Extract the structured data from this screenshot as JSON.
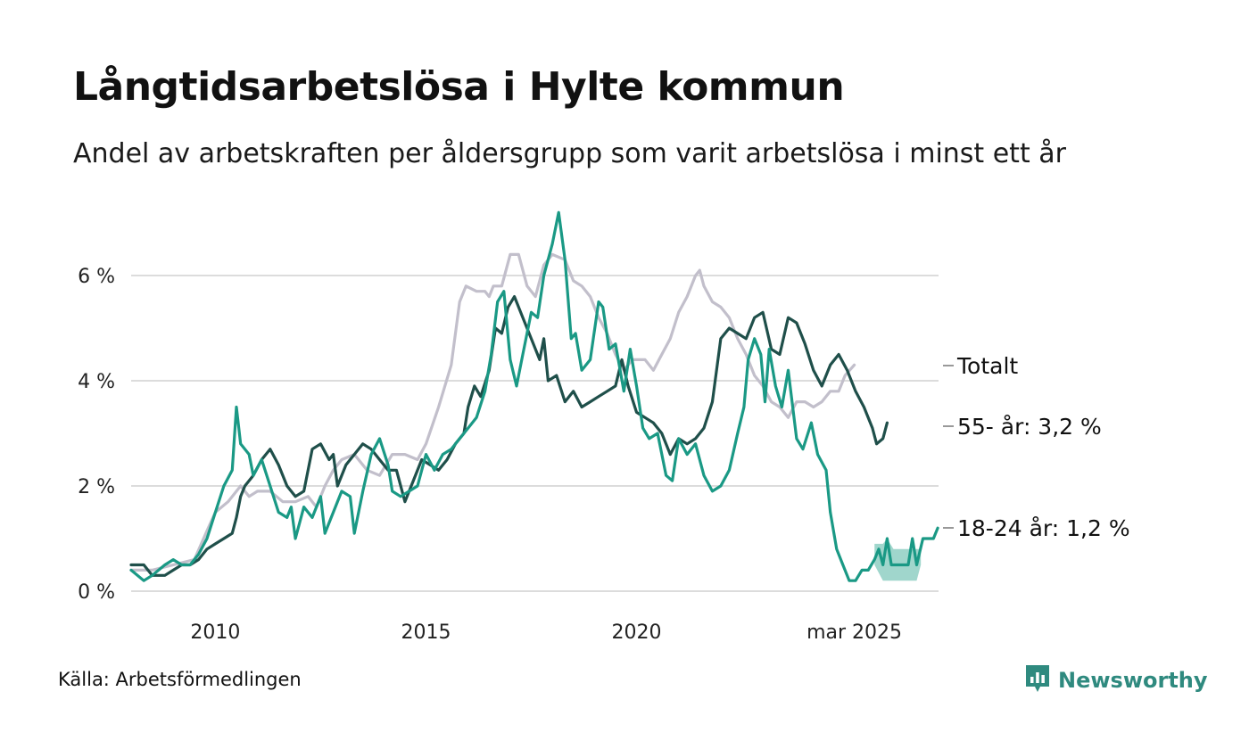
{
  "header": {
    "title": "Långtidsarbetslösa i Hylte kommun",
    "subtitle": "Andel av arbetskraften per åldersgrupp som varit arbetslösa i minst ett år"
  },
  "footer": {
    "source": "Källa: Arbetsförmedlingen",
    "brand": "Newsworthy"
  },
  "colors": {
    "total": "#c2bfcb",
    "age55": "#1f4f4a",
    "age1824": "#1a9985",
    "band": "#8fcfc3",
    "grid": "#dcdcdc",
    "brand": "#2f8a7f"
  },
  "icons": {
    "logo": "bar-chart-speech-bubble-icon"
  },
  "chart_data": {
    "type": "line",
    "x_ticks": [
      "2010",
      "2015",
      "2020",
      "mar 2025"
    ],
    "y_ticks": [
      "0 %",
      "2 %",
      "4 %",
      "6 %"
    ],
    "ylim": [
      0,
      7.3
    ],
    "grid": true,
    "series": [
      {
        "name": "Totalt",
        "label": "Totalt",
        "points": [
          [
            2008.0,
            0.4
          ],
          [
            2008.5,
            0.4
          ],
          [
            2009.0,
            0.5
          ],
          [
            2009.5,
            0.6
          ],
          [
            2009.83,
            1.2
          ],
          [
            2010.0,
            1.5
          ],
          [
            2010.3,
            1.7
          ],
          [
            2010.6,
            2.0
          ],
          [
            2010.8,
            1.8
          ],
          [
            2011.0,
            1.9
          ],
          [
            2011.3,
            1.9
          ],
          [
            2011.6,
            1.7
          ],
          [
            2011.9,
            1.7
          ],
          [
            2012.2,
            1.8
          ],
          [
            2012.4,
            1.6
          ],
          [
            2012.6,
            2.0
          ],
          [
            2012.8,
            2.3
          ],
          [
            2013.0,
            2.5
          ],
          [
            2013.3,
            2.6
          ],
          [
            2013.6,
            2.3
          ],
          [
            2013.9,
            2.2
          ],
          [
            2014.2,
            2.6
          ],
          [
            2014.5,
            2.6
          ],
          [
            2014.8,
            2.5
          ],
          [
            2015.0,
            2.8
          ],
          [
            2015.3,
            3.5
          ],
          [
            2015.6,
            4.3
          ],
          [
            2015.8,
            5.5
          ],
          [
            2015.95,
            5.8
          ],
          [
            2016.2,
            5.7
          ],
          [
            2016.4,
            5.7
          ],
          [
            2016.5,
            5.6
          ],
          [
            2016.6,
            5.8
          ],
          [
            2016.8,
            5.8
          ],
          [
            2017.0,
            6.4
          ],
          [
            2017.2,
            6.4
          ],
          [
            2017.4,
            5.8
          ],
          [
            2017.6,
            5.6
          ],
          [
            2017.8,
            6.2
          ],
          [
            2018.0,
            6.4
          ],
          [
            2018.3,
            6.3
          ],
          [
            2018.5,
            5.9
          ],
          [
            2018.7,
            5.8
          ],
          [
            2018.9,
            5.6
          ],
          [
            2019.1,
            5.2
          ],
          [
            2019.3,
            4.9
          ],
          [
            2019.5,
            4.5
          ],
          [
            2019.7,
            4.2
          ],
          [
            2019.9,
            4.4
          ],
          [
            2020.2,
            4.4
          ],
          [
            2020.4,
            4.2
          ],
          [
            2020.6,
            4.5
          ],
          [
            2020.8,
            4.8
          ],
          [
            2021.0,
            5.3
          ],
          [
            2021.2,
            5.6
          ],
          [
            2021.4,
            6.0
          ],
          [
            2021.5,
            6.1
          ],
          [
            2021.6,
            5.8
          ],
          [
            2021.8,
            5.5
          ],
          [
            2022.0,
            5.4
          ],
          [
            2022.2,
            5.2
          ],
          [
            2022.4,
            4.8
          ],
          [
            2022.6,
            4.5
          ],
          [
            2022.8,
            4.1
          ],
          [
            2023.0,
            3.9
          ],
          [
            2023.2,
            3.6
          ],
          [
            2023.4,
            3.5
          ],
          [
            2023.6,
            3.3
          ],
          [
            2023.8,
            3.6
          ],
          [
            2024.0,
            3.6
          ],
          [
            2024.2,
            3.5
          ],
          [
            2024.4,
            3.6
          ],
          [
            2024.6,
            3.8
          ],
          [
            2024.8,
            3.8
          ],
          [
            2024.95,
            4.1
          ],
          [
            2025.17,
            4.3
          ]
        ]
      },
      {
        "name": "55- år",
        "label": "55- år: 3,2 %",
        "points": [
          [
            2008.0,
            0.5
          ],
          [
            2008.3,
            0.5
          ],
          [
            2008.5,
            0.3
          ],
          [
            2008.8,
            0.3
          ],
          [
            2009.0,
            0.4
          ],
          [
            2009.2,
            0.5
          ],
          [
            2009.4,
            0.5
          ],
          [
            2009.6,
            0.6
          ],
          [
            2009.8,
            0.8
          ],
          [
            2010.0,
            0.9
          ],
          [
            2010.2,
            1.0
          ],
          [
            2010.4,
            1.1
          ],
          [
            2010.5,
            1.4
          ],
          [
            2010.6,
            1.8
          ],
          [
            2010.7,
            2.0
          ],
          [
            2010.9,
            2.2
          ],
          [
            2011.1,
            2.5
          ],
          [
            2011.3,
            2.7
          ],
          [
            2011.5,
            2.4
          ],
          [
            2011.7,
            2.0
          ],
          [
            2011.9,
            1.8
          ],
          [
            2012.1,
            1.9
          ],
          [
            2012.3,
            2.7
          ],
          [
            2012.5,
            2.8
          ],
          [
            2012.7,
            2.5
          ],
          [
            2012.8,
            2.6
          ],
          [
            2012.9,
            2.0
          ],
          [
            2013.1,
            2.4
          ],
          [
            2013.3,
            2.6
          ],
          [
            2013.5,
            2.8
          ],
          [
            2013.7,
            2.7
          ],
          [
            2013.9,
            2.5
          ],
          [
            2014.1,
            2.3
          ],
          [
            2014.3,
            2.3
          ],
          [
            2014.5,
            1.7
          ],
          [
            2014.7,
            2.1
          ],
          [
            2014.9,
            2.5
          ],
          [
            2015.1,
            2.4
          ],
          [
            2015.3,
            2.3
          ],
          [
            2015.5,
            2.5
          ],
          [
            2015.7,
            2.8
          ],
          [
            2015.9,
            3.0
          ],
          [
            2016.0,
            3.5
          ],
          [
            2016.15,
            3.9
          ],
          [
            2016.3,
            3.7
          ],
          [
            2016.5,
            4.2
          ],
          [
            2016.65,
            5.0
          ],
          [
            2016.8,
            4.9
          ],
          [
            2016.95,
            5.4
          ],
          [
            2017.1,
            5.6
          ],
          [
            2017.3,
            5.2
          ],
          [
            2017.5,
            4.8
          ],
          [
            2017.7,
            4.4
          ],
          [
            2017.8,
            4.8
          ],
          [
            2017.9,
            4.0
          ],
          [
            2018.1,
            4.1
          ],
          [
            2018.3,
            3.6
          ],
          [
            2018.5,
            3.8
          ],
          [
            2018.7,
            3.5
          ],
          [
            2018.9,
            3.6
          ],
          [
            2019.1,
            3.7
          ],
          [
            2019.3,
            3.8
          ],
          [
            2019.5,
            3.9
          ],
          [
            2019.65,
            4.4
          ],
          [
            2019.8,
            3.9
          ],
          [
            2020.0,
            3.4
          ],
          [
            2020.2,
            3.3
          ],
          [
            2020.4,
            3.2
          ],
          [
            2020.6,
            3.0
          ],
          [
            2020.8,
            2.6
          ],
          [
            2021.0,
            2.9
          ],
          [
            2021.2,
            2.8
          ],
          [
            2021.4,
            2.9
          ],
          [
            2021.6,
            3.1
          ],
          [
            2021.8,
            3.6
          ],
          [
            2022.0,
            4.8
          ],
          [
            2022.2,
            5.0
          ],
          [
            2022.4,
            4.9
          ],
          [
            2022.6,
            4.8
          ],
          [
            2022.8,
            5.2
          ],
          [
            2023.0,
            5.3
          ],
          [
            2023.2,
            4.6
          ],
          [
            2023.4,
            4.5
          ],
          [
            2023.6,
            5.2
          ],
          [
            2023.8,
            5.1
          ],
          [
            2024.0,
            4.7
          ],
          [
            2024.2,
            4.2
          ],
          [
            2024.4,
            3.9
          ],
          [
            2024.6,
            4.3
          ],
          [
            2024.8,
            4.5
          ],
          [
            2025.0,
            4.2
          ],
          [
            2025.2,
            3.8
          ],
          [
            2025.4,
            3.5
          ],
          [
            2025.6,
            3.1
          ],
          [
            2025.7,
            2.8
          ],
          [
            2025.85,
            2.9
          ],
          [
            2025.95,
            3.2
          ]
        ]
      },
      {
        "name": "18-24 år",
        "label": "18-24 år: 1,2 %",
        "points": [
          [
            2008.0,
            0.4
          ],
          [
            2008.3,
            0.2
          ],
          [
            2008.5,
            0.3
          ],
          [
            2008.8,
            0.5
          ],
          [
            2009.0,
            0.6
          ],
          [
            2009.2,
            0.5
          ],
          [
            2009.4,
            0.5
          ],
          [
            2009.6,
            0.7
          ],
          [
            2009.8,
            1.0
          ],
          [
            2010.0,
            1.5
          ],
          [
            2010.2,
            2.0
          ],
          [
            2010.4,
            2.3
          ],
          [
            2010.5,
            3.5
          ],
          [
            2010.6,
            2.8
          ],
          [
            2010.8,
            2.6
          ],
          [
            2010.9,
            2.2
          ],
          [
            2011.1,
            2.5
          ],
          [
            2011.3,
            2.0
          ],
          [
            2011.5,
            1.5
          ],
          [
            2011.7,
            1.4
          ],
          [
            2011.8,
            1.6
          ],
          [
            2011.9,
            1.0
          ],
          [
            2012.1,
            1.6
          ],
          [
            2012.3,
            1.4
          ],
          [
            2012.5,
            1.8
          ],
          [
            2012.6,
            1.1
          ],
          [
            2012.8,
            1.5
          ],
          [
            2013.0,
            1.9
          ],
          [
            2013.2,
            1.8
          ],
          [
            2013.3,
            1.1
          ],
          [
            2013.5,
            1.9
          ],
          [
            2013.7,
            2.6
          ],
          [
            2013.9,
            2.9
          ],
          [
            2014.1,
            2.4
          ],
          [
            2014.2,
            1.9
          ],
          [
            2014.4,
            1.8
          ],
          [
            2014.6,
            1.9
          ],
          [
            2014.8,
            2.0
          ],
          [
            2015.0,
            2.6
          ],
          [
            2015.2,
            2.3
          ],
          [
            2015.4,
            2.6
          ],
          [
            2015.6,
            2.7
          ],
          [
            2015.8,
            2.9
          ],
          [
            2016.0,
            3.1
          ],
          [
            2016.2,
            3.3
          ],
          [
            2016.4,
            3.8
          ],
          [
            2016.55,
            4.5
          ],
          [
            2016.7,
            5.5
          ],
          [
            2016.85,
            5.7
          ],
          [
            2017.0,
            4.4
          ],
          [
            2017.15,
            3.9
          ],
          [
            2017.3,
            4.5
          ],
          [
            2017.5,
            5.3
          ],
          [
            2017.65,
            5.2
          ],
          [
            2017.8,
            6.0
          ],
          [
            2018.0,
            6.6
          ],
          [
            2018.15,
            7.2
          ],
          [
            2018.3,
            6.3
          ],
          [
            2018.45,
            4.8
          ],
          [
            2018.55,
            4.9
          ],
          [
            2018.7,
            4.2
          ],
          [
            2018.9,
            4.4
          ],
          [
            2019.1,
            5.5
          ],
          [
            2019.2,
            5.4
          ],
          [
            2019.35,
            4.6
          ],
          [
            2019.5,
            4.7
          ],
          [
            2019.7,
            3.8
          ],
          [
            2019.85,
            4.6
          ],
          [
            2020.0,
            3.9
          ],
          [
            2020.15,
            3.1
          ],
          [
            2020.3,
            2.9
          ],
          [
            2020.5,
            3.0
          ],
          [
            2020.7,
            2.2
          ],
          [
            2020.85,
            2.1
          ],
          [
            2021.0,
            2.9
          ],
          [
            2021.2,
            2.6
          ],
          [
            2021.4,
            2.8
          ],
          [
            2021.6,
            2.2
          ],
          [
            2021.8,
            1.9
          ],
          [
            2022.0,
            2.0
          ],
          [
            2022.2,
            2.3
          ],
          [
            2022.4,
            3.0
          ],
          [
            2022.55,
            3.5
          ],
          [
            2022.65,
            4.4
          ],
          [
            2022.8,
            4.8
          ],
          [
            2022.95,
            4.5
          ],
          [
            2023.05,
            3.6
          ],
          [
            2023.15,
            4.6
          ],
          [
            2023.3,
            3.9
          ],
          [
            2023.45,
            3.5
          ],
          [
            2023.6,
            4.2
          ],
          [
            2023.8,
            2.9
          ],
          [
            2023.95,
            2.7
          ],
          [
            2024.15,
            3.2
          ],
          [
            2024.3,
            2.6
          ],
          [
            2024.5,
            2.3
          ],
          [
            2024.6,
            1.5
          ],
          [
            2024.75,
            0.8
          ],
          [
            2024.9,
            0.5
          ],
          [
            2025.05,
            0.2
          ],
          [
            2025.2,
            0.2
          ],
          [
            2025.35,
            0.4
          ],
          [
            2025.5,
            0.4
          ],
          [
            2025.65,
            0.6
          ],
          [
            2025.75,
            0.8
          ],
          [
            2025.85,
            0.5
          ],
          [
            2025.95,
            1.0
          ],
          [
            2026.05,
            0.5
          ],
          [
            2026.15,
            0.5
          ],
          [
            2026.3,
            0.5
          ],
          [
            2026.45,
            0.5
          ],
          [
            2026.55,
            1.0
          ],
          [
            2026.65,
            0.5
          ],
          [
            2026.8,
            1.0
          ],
          [
            2026.95,
            1.0
          ],
          [
            2027.05,
            1.0
          ],
          [
            2027.15,
            1.2
          ]
        ],
        "band": [
          [
            2025.65,
            0.5,
            0.9
          ],
          [
            2025.85,
            0.2,
            0.9
          ],
          [
            2025.95,
            0.2,
            1.0
          ],
          [
            2026.1,
            0.2,
            0.8
          ],
          [
            2026.3,
            0.2,
            0.8
          ],
          [
            2026.5,
            0.2,
            0.8
          ],
          [
            2026.65,
            0.2,
            0.8
          ],
          [
            2026.75,
            0.5,
            0.8
          ]
        ]
      }
    ]
  }
}
